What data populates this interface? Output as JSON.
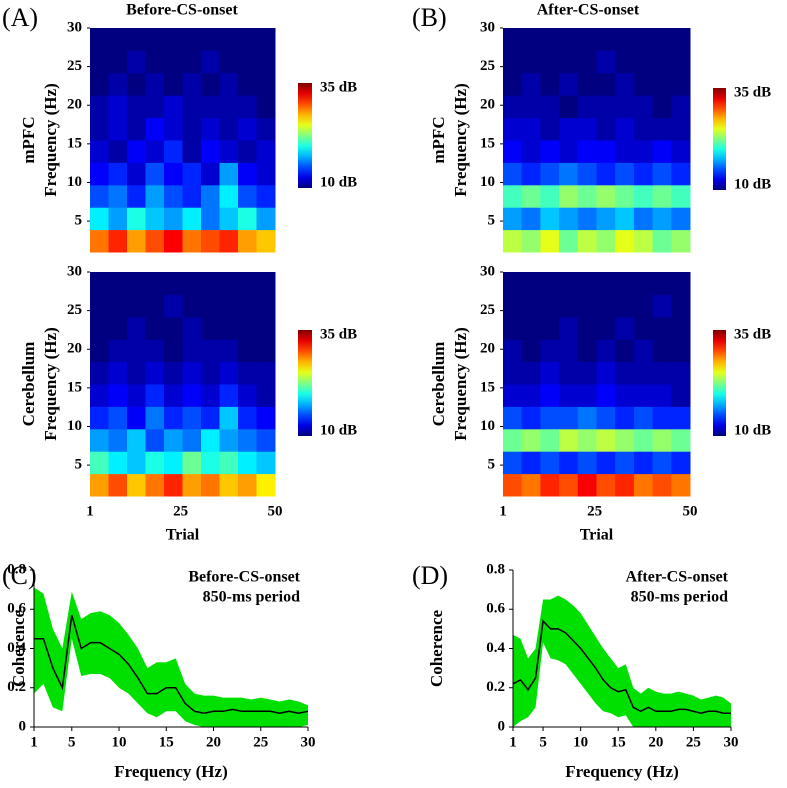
{
  "chart_data": [
    {
      "type": "heatmap",
      "panel_label": "(A)",
      "title": "Before-CS-onset",
      "ylabel": [
        "mPFC",
        "Frequency (Hz)"
      ],
      "xlim": [
        1,
        50
      ],
      "ylim": [
        1,
        30
      ],
      "yticks": [
        5,
        10,
        15,
        20,
        25,
        30
      ],
      "zlim": [
        10,
        35
      ],
      "colorbar_ticks": [
        {
          "value": 35,
          "label": "35 dB"
        },
        {
          "value": 10,
          "label": "10 dB"
        }
      ],
      "z": [
        [
          29,
          31,
          28,
          30,
          32,
          29,
          30,
          31,
          28,
          27
        ],
        [
          19,
          17,
          20,
          18,
          17,
          19,
          16,
          18,
          20,
          17
        ],
        [
          15,
          16,
          14,
          17,
          15,
          14,
          16,
          19,
          15,
          14
        ],
        [
          13,
          14,
          12,
          15,
          13,
          14,
          12,
          17,
          13,
          12
        ],
        [
          12,
          11,
          13,
          12,
          14,
          11,
          13,
          12,
          11,
          12
        ],
        [
          11,
          12,
          11,
          13,
          12,
          11,
          12,
          11,
          12,
          11
        ],
        [
          11,
          12,
          11,
          11,
          12,
          11,
          11,
          11,
          11,
          10
        ],
        [
          10,
          11,
          10,
          11,
          10,
          11,
          10,
          11,
          10,
          10
        ],
        [
          10,
          10,
          11,
          10,
          10,
          10,
          11,
          10,
          10,
          10
        ],
        [
          10,
          10,
          10,
          10,
          10,
          10,
          10,
          10,
          10,
          10
        ]
      ]
    },
    {
      "type": "heatmap",
      "ylabel": [
        "Cerebellum",
        "Frequency (Hz)"
      ],
      "xlabel": "Trial",
      "xlim": [
        1,
        50
      ],
      "xticks": [
        1,
        25,
        50
      ],
      "ylim": [
        1,
        30
      ],
      "yticks": [
        5,
        10,
        15,
        20,
        25,
        30
      ],
      "zlim": [
        10,
        35
      ],
      "colorbar_ticks": [
        {
          "value": 35,
          "label": "35 dB"
        },
        {
          "value": 10,
          "label": "10 dB"
        }
      ],
      "z": [
        [
          28,
          30,
          27,
          29,
          31,
          28,
          29,
          27,
          28,
          26
        ],
        [
          21,
          19,
          18,
          20,
          19,
          22,
          20,
          21,
          19,
          18
        ],
        [
          17,
          16,
          18,
          15,
          17,
          16,
          19,
          17,
          16,
          15
        ],
        [
          14,
          15,
          13,
          16,
          14,
          15,
          14,
          18,
          14,
          13
        ],
        [
          12,
          13,
          12,
          14,
          12,
          13,
          12,
          14,
          12,
          11
        ],
        [
          11,
          12,
          11,
          12,
          11,
          12,
          11,
          12,
          11,
          11
        ],
        [
          10,
          11,
          11,
          11,
          10,
          11,
          11,
          11,
          10,
          10
        ],
        [
          10,
          10,
          11,
          10,
          10,
          11,
          10,
          10,
          10,
          10
        ],
        [
          10,
          10,
          10,
          10,
          11,
          10,
          10,
          10,
          10,
          10
        ],
        [
          10,
          10,
          10,
          10,
          10,
          10,
          10,
          10,
          10,
          10
        ]
      ]
    },
    {
      "type": "heatmap",
      "panel_label": "(B)",
      "title": "After-CS-onset",
      "ylabel": [
        "mPFC",
        "Frequency (Hz)"
      ],
      "xlim": [
        1,
        50
      ],
      "ylim": [
        1,
        30
      ],
      "yticks": [
        5,
        10,
        15,
        20,
        25,
        30
      ],
      "zlim": [
        10,
        35
      ],
      "colorbar_ticks": [
        {
          "value": 35,
          "label": "35 dB"
        },
        {
          "value": 10,
          "label": "10 dB"
        }
      ],
      "z": [
        [
          24,
          23,
          25,
          22,
          24,
          23,
          25,
          24,
          22,
          23
        ],
        [
          17,
          16,
          18,
          17,
          16,
          17,
          18,
          16,
          17,
          16
        ],
        [
          21,
          22,
          21,
          23,
          22,
          23,
          22,
          21,
          22,
          21
        ],
        [
          15,
          14,
          15,
          16,
          15,
          14,
          15,
          14,
          15,
          14
        ],
        [
          13,
          12,
          13,
          12,
          13,
          13,
          12,
          12,
          13,
          12
        ],
        [
          12,
          12,
          11,
          12,
          12,
          11,
          12,
          11,
          11,
          11
        ],
        [
          11,
          11,
          11,
          10,
          11,
          11,
          11,
          11,
          10,
          11
        ],
        [
          10,
          11,
          10,
          11,
          10,
          10,
          11,
          10,
          10,
          10
        ],
        [
          10,
          10,
          10,
          10,
          10,
          11,
          10,
          10,
          10,
          10
        ],
        [
          10,
          10,
          10,
          10,
          10,
          10,
          10,
          10,
          10,
          10
        ]
      ]
    },
    {
      "type": "heatmap",
      "ylabel": [
        "Cerebellum",
        "Frequency (Hz)"
      ],
      "xlabel": "Trial",
      "xlim": [
        1,
        50
      ],
      "xticks": [
        1,
        25,
        50
      ],
      "ylim": [
        1,
        30
      ],
      "yticks": [
        5,
        10,
        15,
        20,
        25,
        30
      ],
      "zlim": [
        10,
        35
      ],
      "colorbar_ticks": [
        {
          "value": 35,
          "label": "35 dB"
        },
        {
          "value": 10,
          "label": "10 dB"
        }
      ],
      "z": [
        [
          30,
          29,
          31,
          30,
          32,
          30,
          31,
          29,
          30,
          29
        ],
        [
          15,
          14,
          15,
          14,
          15,
          14,
          15,
          14,
          15,
          14
        ],
        [
          22,
          23,
          22,
          24,
          23,
          24,
          23,
          22,
          23,
          22
        ],
        [
          15,
          14,
          15,
          15,
          16,
          15,
          14,
          15,
          14,
          14
        ],
        [
          12,
          12,
          13,
          12,
          12,
          13,
          12,
          12,
          12,
          11
        ],
        [
          11,
          11,
          12,
          11,
          11,
          12,
          11,
          11,
          11,
          11
        ],
        [
          11,
          10,
          11,
          11,
          10,
          11,
          10,
          11,
          10,
          10
        ],
        [
          10,
          10,
          10,
          11,
          10,
          10,
          11,
          10,
          10,
          10
        ],
        [
          10,
          10,
          10,
          10,
          10,
          10,
          10,
          10,
          11,
          10
        ],
        [
          10,
          10,
          10,
          10,
          10,
          10,
          10,
          10,
          10,
          10
        ]
      ]
    },
    {
      "type": "line",
      "panel_label": "(C)",
      "annotation": [
        "Before-CS-onset",
        "850-ms period"
      ],
      "xlabel": "Frequency (Hz)",
      "ylabel": "Coherence",
      "xlim": [
        1,
        30
      ],
      "xticks": [
        1,
        5,
        10,
        15,
        20,
        25,
        30
      ],
      "ylim": [
        0,
        0.8
      ],
      "yticks": [
        0,
        0.2,
        0.4,
        0.6,
        0.8
      ],
      "x": [
        1,
        2,
        3,
        4,
        5,
        6,
        7,
        8,
        9,
        10,
        11,
        12,
        13,
        14,
        15,
        16,
        17,
        18,
        19,
        20,
        21,
        22,
        23,
        24,
        25,
        26,
        27,
        28,
        29,
        30
      ],
      "series": [
        {
          "color": "#000000",
          "values": [
            0.45,
            0.45,
            0.3,
            0.2,
            0.57,
            0.4,
            0.43,
            0.43,
            0.4,
            0.37,
            0.32,
            0.25,
            0.17,
            0.17,
            0.2,
            0.2,
            0.12,
            0.08,
            0.07,
            0.08,
            0.08,
            0.09,
            0.08,
            0.08,
            0.08,
            0.08,
            0.07,
            0.08,
            0.07,
            0.08
          ]
        }
      ],
      "band": {
        "color": "#00e000",
        "upper": [
          0.71,
          0.68,
          0.5,
          0.4,
          0.69,
          0.55,
          0.58,
          0.59,
          0.57,
          0.53,
          0.47,
          0.4,
          0.3,
          0.33,
          0.33,
          0.35,
          0.22,
          0.17,
          0.16,
          0.16,
          0.15,
          0.15,
          0.15,
          0.14,
          0.15,
          0.14,
          0.13,
          0.14,
          0.13,
          0.11
        ],
        "lower": [
          0.17,
          0.22,
          0.1,
          0.08,
          0.45,
          0.26,
          0.27,
          0.27,
          0.25,
          0.2,
          0.17,
          0.12,
          0.07,
          0.05,
          0.08,
          0.08,
          0.03,
          0.01,
          0,
          0,
          0,
          0,
          0,
          0,
          0,
          0,
          0,
          0,
          0,
          0.01
        ]
      }
    },
    {
      "type": "line",
      "panel_label": "(D)",
      "annotation": [
        "After-CS-onset",
        "850-ms period"
      ],
      "xlabel": "Frequency (Hz)",
      "ylabel": "Coherence",
      "xlim": [
        1,
        30
      ],
      "xticks": [
        1,
        5,
        10,
        15,
        20,
        25,
        30
      ],
      "ylim": [
        0,
        0.8
      ],
      "yticks": [
        0,
        0.2,
        0.4,
        0.6,
        0.8
      ],
      "x": [
        1,
        2,
        3,
        4,
        5,
        6,
        7,
        8,
        9,
        10,
        11,
        12,
        13,
        14,
        15,
        16,
        17,
        18,
        19,
        20,
        21,
        22,
        23,
        24,
        25,
        26,
        27,
        28,
        29,
        30
      ],
      "series": [
        {
          "color": "#000000",
          "values": [
            0.22,
            0.24,
            0.19,
            0.25,
            0.54,
            0.5,
            0.5,
            0.48,
            0.44,
            0.4,
            0.35,
            0.3,
            0.24,
            0.2,
            0.18,
            0.19,
            0.1,
            0.08,
            0.1,
            0.08,
            0.08,
            0.08,
            0.09,
            0.09,
            0.08,
            0.07,
            0.08,
            0.08,
            0.07,
            0.07
          ]
        }
      ],
      "band": {
        "color": "#00e000",
        "upper": [
          0.47,
          0.45,
          0.35,
          0.4,
          0.65,
          0.65,
          0.67,
          0.65,
          0.62,
          0.58,
          0.52,
          0.46,
          0.4,
          0.35,
          0.3,
          0.32,
          0.2,
          0.17,
          0.2,
          0.18,
          0.17,
          0.17,
          0.18,
          0.17,
          0.16,
          0.14,
          0.15,
          0.16,
          0.15,
          0.12
        ],
        "lower": [
          0,
          0.03,
          0.05,
          0.1,
          0.43,
          0.35,
          0.34,
          0.32,
          0.27,
          0.22,
          0.17,
          0.12,
          0.08,
          0.07,
          0.05,
          0.06,
          0,
          0,
          0,
          0,
          0,
          0,
          0,
          0,
          0,
          0,
          0,
          0,
          0,
          0
        ]
      }
    }
  ]
}
